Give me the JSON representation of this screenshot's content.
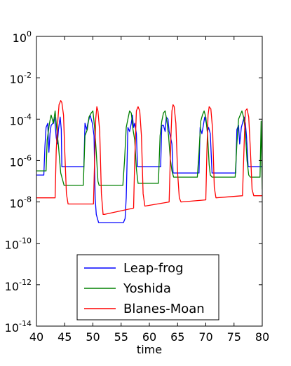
{
  "chart_data": {
    "type": "line",
    "title": "",
    "xlabel": "time",
    "ylabel": "",
    "xlim": [
      40,
      80
    ],
    "ylim_exponent": [
      -14,
      0
    ],
    "yscale": "log",
    "grid": false,
    "legend_position": "lower-center",
    "x_ticks": [
      "40",
      "45",
      "50",
      "55",
      "60",
      "65",
      "70",
      "75",
      "80"
    ],
    "y_ticks": [
      {
        "base": "10",
        "exp": "0",
        "e": 0
      },
      {
        "base": "10",
        "exp": "-2",
        "e": -2
      },
      {
        "base": "10",
        "exp": "-4",
        "e": -4
      },
      {
        "base": "10",
        "exp": "-6",
        "e": -6
      },
      {
        "base": "10",
        "exp": "-8",
        "e": -8
      },
      {
        "base": "10",
        "exp": "-10",
        "e": -10
      },
      {
        "base": "10",
        "exp": "-12",
        "e": -12
      },
      {
        "base": "10",
        "exp": "-14",
        "e": -14
      }
    ],
    "series": [
      {
        "name": "Leap-frog",
        "color": "#0000ff",
        "x": [
          40.0,
          41.3,
          41.5,
          41.7,
          42.0,
          42.2,
          42.4,
          42.6,
          42.9,
          43.2,
          43.5,
          43.7,
          43.9,
          44.2,
          44.4,
          44.5,
          44.7,
          45.0,
          48.4,
          48.6,
          48.9,
          49.1,
          49.5,
          49.9,
          50.2,
          50.4,
          50.6,
          51.0,
          55.4,
          55.7,
          55.9,
          56.2,
          56.5,
          56.8,
          57.0,
          57.2,
          57.4,
          57.7,
          57.9,
          62.0,
          62.2,
          62.5,
          62.8,
          63.0,
          63.3,
          63.5,
          63.7,
          64.0,
          64.2,
          64.5,
          68.8,
          69.0,
          69.3,
          69.5,
          69.8,
          70.1,
          70.3,
          70.5,
          70.8,
          71.1,
          75.3,
          75.5,
          75.8,
          76.0,
          76.3,
          76.6,
          76.8,
          77.0,
          77.2,
          77.5,
          79.3,
          79.5,
          80.0
        ],
        "y_exp": [
          -6.7,
          -6.7,
          -5.3,
          -4.4,
          -4.2,
          -5.6,
          -4.7,
          -4.3,
          -4.2,
          -3.9,
          -4.9,
          -5.2,
          -4.5,
          -3.9,
          -4.5,
          -6.3,
          -6.3,
          -6.3,
          -6.3,
          -4.2,
          -4.5,
          -4.2,
          -3.8,
          -4.2,
          -4.8,
          -7.8,
          -8.6,
          -9.0,
          -9.0,
          -8.8,
          -7.8,
          -4.4,
          -4.6,
          -4.2,
          -3.8,
          -4.4,
          -4.2,
          -4.7,
          -6.3,
          -6.3,
          -4.3,
          -4.3,
          -4.6,
          -3.9,
          -4.0,
          -4.6,
          -4.8,
          -5.2,
          -6.6,
          -6.6,
          -6.6,
          -4.4,
          -4.7,
          -4.4,
          -3.9,
          -4.2,
          -4.6,
          -4.4,
          -4.7,
          -6.6,
          -6.6,
          -4.5,
          -4.3,
          -5.2,
          -4.4,
          -4.1,
          -3.9,
          -4.2,
          -4.8,
          -6.3,
          -6.3,
          -6.3,
          -6.3
        ]
      },
      {
        "name": "Yoshida",
        "color": "#008000",
        "x": [
          40.0,
          41.7,
          41.9,
          42.3,
          42.6,
          43.0,
          43.3,
          43.6,
          43.9,
          44.3,
          44.7,
          44.9,
          45.1,
          48.3,
          48.6,
          49.0,
          49.3,
          49.7,
          50.0,
          50.3,
          50.6,
          50.9,
          51.1,
          55.3,
          55.6,
          55.9,
          56.2,
          56.5,
          56.8,
          57.1,
          57.4,
          57.7,
          58.0,
          61.6,
          61.9,
          62.2,
          62.5,
          62.8,
          63.1,
          63.4,
          63.7,
          64.0,
          64.3,
          68.5,
          68.8,
          69.1,
          69.4,
          69.7,
          70.0,
          70.3,
          70.6,
          70.8,
          71.1,
          75.2,
          75.5,
          75.8,
          76.1,
          76.4,
          76.7,
          77.0,
          77.3,
          77.6,
          77.9,
          79.6,
          79.8,
          80.0
        ],
        "y_exp": [
          -6.5,
          -6.5,
          -5.0,
          -4.2,
          -3.8,
          -4.2,
          -3.6,
          -4.5,
          -5.3,
          -6.6,
          -7.0,
          -7.2,
          -7.2,
          -7.2,
          -4.8,
          -4.5,
          -3.9,
          -3.7,
          -3.6,
          -4.4,
          -5.6,
          -7.0,
          -7.2,
          -7.2,
          -6.0,
          -4.4,
          -4.0,
          -3.6,
          -3.7,
          -4.5,
          -5.0,
          -6.4,
          -7.1,
          -7.1,
          -4.8,
          -4.1,
          -3.7,
          -3.6,
          -4.1,
          -4.8,
          -5.9,
          -6.5,
          -6.8,
          -6.8,
          -5.6,
          -4.1,
          -3.8,
          -3.6,
          -3.9,
          -4.7,
          -6.2,
          -6.7,
          -6.8,
          -6.8,
          -5.2,
          -4.0,
          -3.8,
          -3.6,
          -3.9,
          -4.6,
          -6.0,
          -6.7,
          -6.8,
          -6.8,
          -4.1,
          -7.4
        ]
      },
      {
        "name": "Blanes-Moan",
        "color": "#ff0000",
        "x": [
          40.0,
          43.3,
          43.5,
          43.8,
          44.0,
          44.3,
          44.5,
          44.8,
          45.0,
          45.3,
          45.6,
          50.1,
          50.3,
          50.5,
          50.7,
          50.9,
          51.2,
          51.5,
          51.8,
          52.1,
          57.2,
          57.4,
          57.7,
          58.0,
          58.3,
          58.6,
          58.9,
          59.2,
          63.5,
          63.8,
          64.0,
          64.2,
          64.4,
          64.7,
          65.0,
          65.3,
          65.6,
          70.0,
          70.2,
          70.4,
          70.6,
          70.9,
          71.2,
          71.5,
          71.8,
          76.5,
          76.8,
          77.0,
          77.3,
          77.6,
          77.9,
          78.2,
          78.5,
          80.0
        ],
        "y_exp": [
          -7.8,
          -7.8,
          -5.5,
          -4.0,
          -3.3,
          -3.1,
          -3.2,
          -3.8,
          -5.5,
          -7.6,
          -8.1,
          -8.1,
          -6.0,
          -4.0,
          -3.4,
          -3.6,
          -4.6,
          -7.6,
          -8.6,
          -8.6,
          -8.3,
          -6.0,
          -3.6,
          -3.4,
          -3.6,
          -4.8,
          -7.6,
          -8.2,
          -8.0,
          -5.0,
          -3.6,
          -3.3,
          -3.4,
          -4.2,
          -6.6,
          -7.8,
          -8.0,
          -7.9,
          -5.5,
          -3.8,
          -3.4,
          -3.5,
          -4.5,
          -7.3,
          -7.8,
          -7.7,
          -5.2,
          -3.6,
          -3.5,
          -3.9,
          -5.5,
          -7.4,
          -7.7,
          -7.7
        ]
      }
    ]
  }
}
